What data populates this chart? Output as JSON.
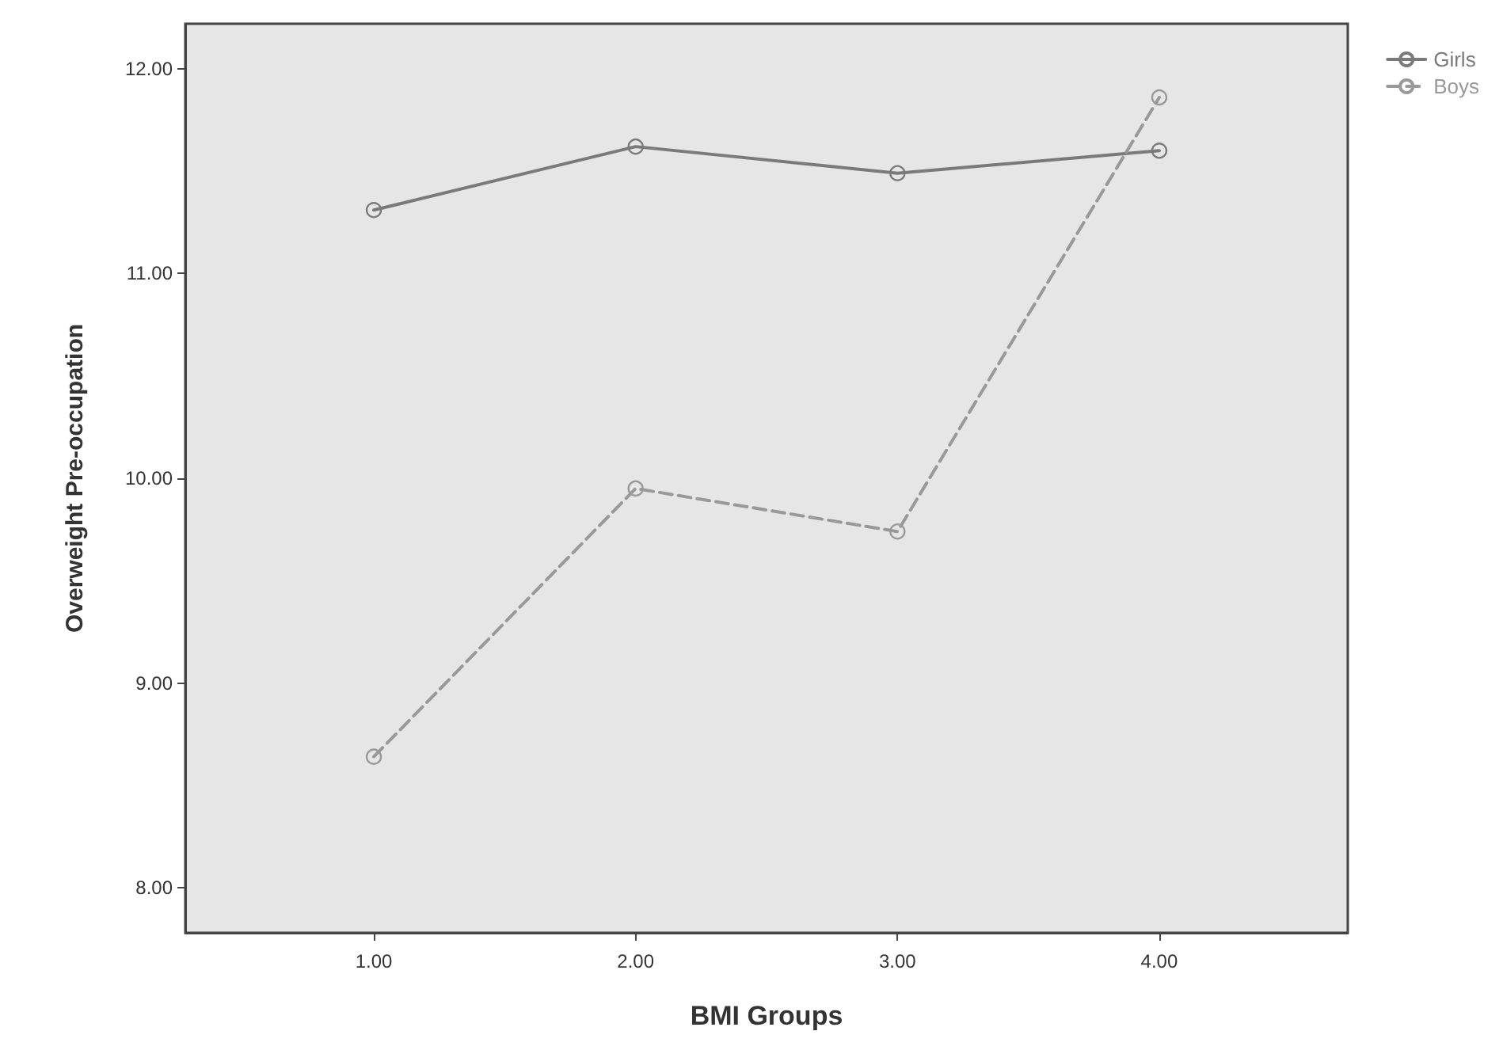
{
  "chart_data": {
    "type": "line",
    "xlabel": "BMI Groups",
    "ylabel": "Overweight Pre-occupation",
    "x": [
      1,
      2,
      3,
      4
    ],
    "series": [
      {
        "name": "Girls",
        "color": "#7a7a7a",
        "line_style": "solid",
        "values": [
          11.31,
          11.62,
          11.49,
          11.6
        ]
      },
      {
        "name": "Boys",
        "color": "#999999",
        "line_style": "dashed",
        "values": [
          8.64,
          9.95,
          9.74,
          11.86
        ]
      }
    ],
    "xlim": [
      0.28,
      4.72
    ],
    "ylim": [
      7.78,
      12.22
    ],
    "xticks": [
      {
        "value": 1,
        "label": "1.00"
      },
      {
        "value": 2,
        "label": "2.00"
      },
      {
        "value": 3,
        "label": "3.00"
      },
      {
        "value": 4,
        "label": "4.00"
      }
    ],
    "yticks": [
      {
        "value": 8,
        "label": "8.00"
      },
      {
        "value": 9,
        "label": "9.00"
      },
      {
        "value": 10,
        "label": "10.00"
      },
      {
        "value": 11,
        "label": "11.00"
      },
      {
        "value": 12,
        "label": "12.00"
      }
    ],
    "grid": false,
    "legend": "top right",
    "marker": "circle"
  }
}
